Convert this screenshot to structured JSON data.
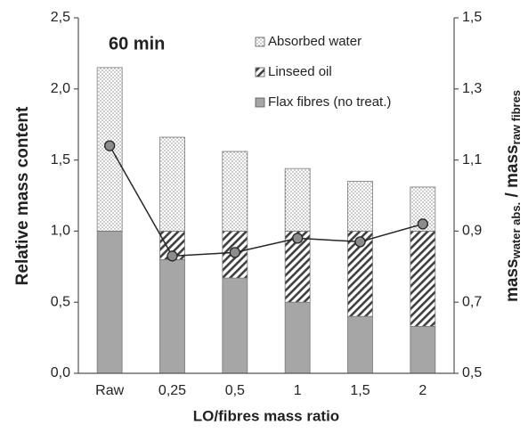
{
  "chart_data": {
    "type": "bar",
    "stacked": true,
    "annotation": "60 min",
    "x_label": "LO/fibres mass ratio",
    "y_label": "Relative mass content",
    "y2_label": [
      "mass",
      "water abs.",
      " / mass",
      "raw fibres"
    ],
    "categories": [
      "Raw",
      "0,25",
      "0,5",
      "1",
      "1,5",
      "2"
    ],
    "series": [
      {
        "name": "Flax fibres (no treat.)",
        "color": "#a6a6a6",
        "pattern": "solid",
        "values": [
          1.0,
          0.8,
          0.67,
          0.5,
          0.4,
          0.33
        ]
      },
      {
        "name": "Linseed oil",
        "color": "#404040",
        "pattern": "hatch",
        "values": [
          0,
          0.2,
          0.33,
          0.5,
          0.6,
          0.67
        ]
      },
      {
        "name": "Absorbed water",
        "color": "#404040",
        "pattern": "dots",
        "values": [
          1.15,
          0.66,
          0.56,
          0.44,
          0.35,
          0.31
        ]
      }
    ],
    "line": {
      "axis": "y2",
      "color": "#262626",
      "marker_color": "#8c8c8c",
      "values": [
        1.14,
        0.83,
        0.84,
        0.88,
        0.87,
        0.92
      ]
    },
    "ylim": [
      0,
      2.5
    ],
    "yticks": [
      {
        "value": 0,
        "label": "0,0"
      },
      {
        "value": 0.5,
        "label": "0,5"
      },
      {
        "value": 1,
        "label": "1,0"
      },
      {
        "value": 1.5,
        "label": "1,5"
      },
      {
        "value": 2,
        "label": "2,0"
      },
      {
        "value": 2.5,
        "label": "2,5"
      }
    ],
    "y2lim": [
      0.5,
      1.5
    ],
    "y2ticks": [
      {
        "value": 0.5,
        "label": "0,5"
      },
      {
        "value": 0.7,
        "label": "0,7"
      },
      {
        "value": 0.9,
        "label": "0,9"
      },
      {
        "value": 1.1,
        "label": "1,1"
      },
      {
        "value": 1.3,
        "label": "1,3"
      },
      {
        "value": 1.5,
        "label": "1,5"
      }
    ],
    "legend": "upper right"
  }
}
